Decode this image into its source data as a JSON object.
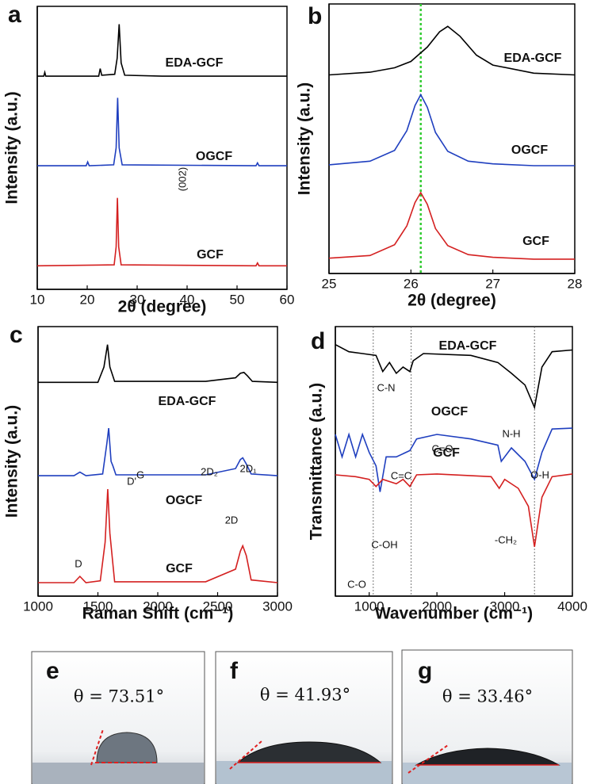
{
  "chart_data": [
    {
      "type": "line",
      "panel": "a",
      "xlabel": "2θ (degree)",
      "ylabel": "Intensity (a.u.)",
      "xlim": [
        10,
        60
      ],
      "ylim": [
        0,
        3
      ],
      "xticks": [
        10,
        20,
        30,
        40,
        50,
        60
      ],
      "series": [
        {
          "name": "EDA-GCF",
          "color": "#000000",
          "x": [
            10,
            11.3,
            11.5,
            11.7,
            22.3,
            22.6,
            22.9,
            25.5,
            26.0,
            26.4,
            26.8,
            27.5,
            35,
            60
          ],
          "values": [
            2.26,
            2.26,
            2.3,
            2.26,
            2.26,
            2.34,
            2.27,
            2.28,
            2.45,
            2.81,
            2.4,
            2.27,
            2.26,
            2.26
          ]
        },
        {
          "name": "OGCF",
          "color": "#1f3fbf",
          "x": [
            10,
            19.8,
            20.1,
            20.4,
            25.3,
            25.8,
            26.1,
            26.4,
            27,
            53.8,
            54.1,
            54.4,
            60
          ],
          "values": [
            1.31,
            1.31,
            1.35,
            1.31,
            1.32,
            1.5,
            2.03,
            1.5,
            1.32,
            1.31,
            1.34,
            1.31,
            1.31
          ]
        },
        {
          "name": "GCF",
          "color": "#d42020",
          "x": [
            10,
            25.4,
            25.8,
            26.05,
            26.3,
            26.8,
            53.8,
            54.1,
            54.4,
            60
          ],
          "values": [
            0.25,
            0.26,
            0.45,
            0.97,
            0.45,
            0.26,
            0.25,
            0.28,
            0.25,
            0.25
          ]
        }
      ],
      "annotations": [
        "(002)"
      ]
    },
    {
      "type": "line",
      "panel": "b",
      "xlabel": "2θ (degree)",
      "ylabel": "Intensity (a.u.)",
      "xlim": [
        25,
        28
      ],
      "ylim": [
        0,
        3
      ],
      "xticks": [
        25,
        26,
        27,
        28
      ],
      "vlines": [
        26.12
      ],
      "vline_color": "#33cc33",
      "series": [
        {
          "name": "EDA-GCF",
          "color": "#000000",
          "x": [
            25,
            25.5,
            25.8,
            26,
            26.2,
            26.35,
            26.45,
            26.6,
            26.8,
            27,
            27.5,
            28
          ],
          "values": [
            2.21,
            2.24,
            2.29,
            2.36,
            2.52,
            2.69,
            2.75,
            2.64,
            2.43,
            2.32,
            2.23,
            2.21
          ]
        },
        {
          "name": "OGCF",
          "color": "#1f3fbf",
          "x": [
            25,
            25.5,
            25.8,
            25.95,
            26.05,
            26.12,
            26.2,
            26.3,
            26.45,
            26.7,
            27,
            27.5,
            28
          ],
          "values": [
            1.21,
            1.25,
            1.37,
            1.59,
            1.87,
            1.99,
            1.85,
            1.57,
            1.36,
            1.25,
            1.22,
            1.2,
            1.2
          ]
        },
        {
          "name": "GCF",
          "color": "#d42020",
          "x": [
            25,
            25.5,
            25.8,
            25.95,
            26.05,
            26.12,
            26.2,
            26.3,
            26.45,
            26.7,
            27,
            27.5,
            28
          ],
          "values": [
            0.17,
            0.2,
            0.32,
            0.53,
            0.79,
            0.9,
            0.77,
            0.5,
            0.31,
            0.21,
            0.18,
            0.16,
            0.16
          ]
        }
      ]
    },
    {
      "type": "line",
      "panel": "c",
      "xlabel": "Raman Shift (cm⁻¹)",
      "ylabel": "Intensity (a.u.)",
      "xlim": [
        1000,
        3000
      ],
      "ylim": [
        0,
        3
      ],
      "xticks": [
        1000,
        1500,
        2000,
        2500,
        3000
      ],
      "series": [
        {
          "name": "EDA-GCF",
          "color": "#000000",
          "x": [
            1000,
            1500,
            1550,
            1580,
            1600,
            1640,
            2400,
            2650,
            2690,
            2720,
            2750,
            2790,
            3000
          ],
          "values": [
            2.38,
            2.38,
            2.55,
            2.8,
            2.55,
            2.39,
            2.39,
            2.43,
            2.48,
            2.49,
            2.45,
            2.39,
            2.38
          ]
        },
        {
          "name": "OGCF",
          "color": "#1f3fbf",
          "x": [
            1000,
            1300,
            1350,
            1400,
            1540,
            1575,
            1590,
            1610,
            1625,
            1650,
            2400,
            2650,
            2690,
            2710,
            2740,
            2780,
            3000
          ],
          "values": [
            1.34,
            1.34,
            1.38,
            1.34,
            1.36,
            1.7,
            1.87,
            1.5,
            1.45,
            1.35,
            1.35,
            1.42,
            1.52,
            1.54,
            1.47,
            1.36,
            1.34
          ]
        },
        {
          "name": "GCF",
          "color": "#d42020",
          "x": [
            1000,
            1300,
            1350,
            1400,
            1520,
            1560,
            1582,
            1600,
            1640,
            2400,
            2650,
            2690,
            2710,
            2740,
            2780,
            3000
          ],
          "values": [
            0.15,
            0.15,
            0.22,
            0.15,
            0.17,
            0.6,
            1.19,
            0.7,
            0.16,
            0.16,
            0.3,
            0.5,
            0.56,
            0.45,
            0.18,
            0.15
          ]
        }
      ],
      "annotations": [
        "D",
        "G",
        "2D",
        "D'",
        "2D₂",
        "2D₁"
      ]
    },
    {
      "type": "line",
      "panel": "d",
      "xlabel": "Wavenumber (cm⁻¹)",
      "ylabel": "Transmittance (a.u.)",
      "xlim": [
        500,
        4000
      ],
      "ylim": [
        0,
        3
      ],
      "xticks": [
        1000,
        2000,
        3000,
        4000
      ],
      "vlines": [
        1060,
        1620,
        3440
      ],
      "vline_color": "#555555",
      "series": [
        {
          "name": "EDA-GCF",
          "color": "#000000",
          "x": [
            500,
            700,
            900,
            1100,
            1200,
            1300,
            1400,
            1500,
            1600,
            1650,
            1800,
            2500,
            2900,
            3100,
            3300,
            3440,
            3550,
            3700,
            4000
          ],
          "values": [
            2.8,
            2.72,
            2.7,
            2.68,
            2.5,
            2.6,
            2.48,
            2.55,
            2.5,
            2.62,
            2.7,
            2.68,
            2.6,
            2.48,
            2.35,
            2.1,
            2.55,
            2.72,
            2.74
          ]
        },
        {
          "name": "OGCF",
          "color": "#1f3fbf",
          "x": [
            500,
            600,
            700,
            800,
            900,
            1000,
            1100,
            1160,
            1250,
            1400,
            1600,
            1700,
            2000,
            2500,
            2900,
            2950,
            3100,
            3300,
            3440,
            3550,
            3700,
            4000
          ],
          "values": [
            1.8,
            1.55,
            1.8,
            1.55,
            1.8,
            1.6,
            1.45,
            1.16,
            1.55,
            1.55,
            1.62,
            1.75,
            1.8,
            1.75,
            1.68,
            1.5,
            1.65,
            1.5,
            1.3,
            1.6,
            1.86,
            1.87
          ]
        },
        {
          "name": "GCF",
          "color": "#d42020",
          "x": [
            500,
            800,
            1000,
            1100,
            1200,
            1400,
            1500,
            1600,
            1700,
            2000,
            2800,
            2920,
            3000,
            3200,
            3350,
            3440,
            3550,
            3700,
            4000
          ],
          "values": [
            1.35,
            1.33,
            1.3,
            1.22,
            1.3,
            1.25,
            1.3,
            1.22,
            1.35,
            1.36,
            1.33,
            1.2,
            1.3,
            1.2,
            1.0,
            0.55,
            1.1,
            1.33,
            1.36
          ]
        }
      ],
      "annotations": [
        "C-N",
        "N-H",
        "C=O",
        "C=C",
        "C-OH",
        "O-H",
        "-CH₂",
        "C-O"
      ]
    }
  ],
  "photos": [
    {
      "panel": "e",
      "angle_label": "θ = 73.51°"
    },
    {
      "panel": "f",
      "angle_label": "θ = 41.93°"
    },
    {
      "panel": "g",
      "angle_label": "θ = 33.46°"
    }
  ]
}
